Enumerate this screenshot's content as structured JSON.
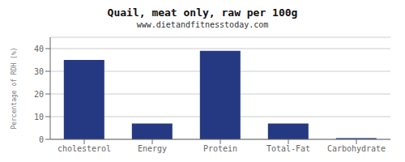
{
  "chart_data": {
    "type": "bar",
    "title": "Quail, meat only, raw per 100g",
    "subtitle": "www.dietandfitnesstoday.com",
    "categories": [
      "cholesterol",
      "Energy",
      "Protein",
      "Total-Fat",
      "Carbohydrate"
    ],
    "values": [
      35,
      7,
      39,
      7,
      0.5
    ],
    "color": "#253882",
    "ylabel": "Percentage of RDH (%)",
    "ylim": [
      0,
      45
    ],
    "yticks": [
      0,
      10,
      20,
      30,
      40
    ],
    "grid": true
  }
}
